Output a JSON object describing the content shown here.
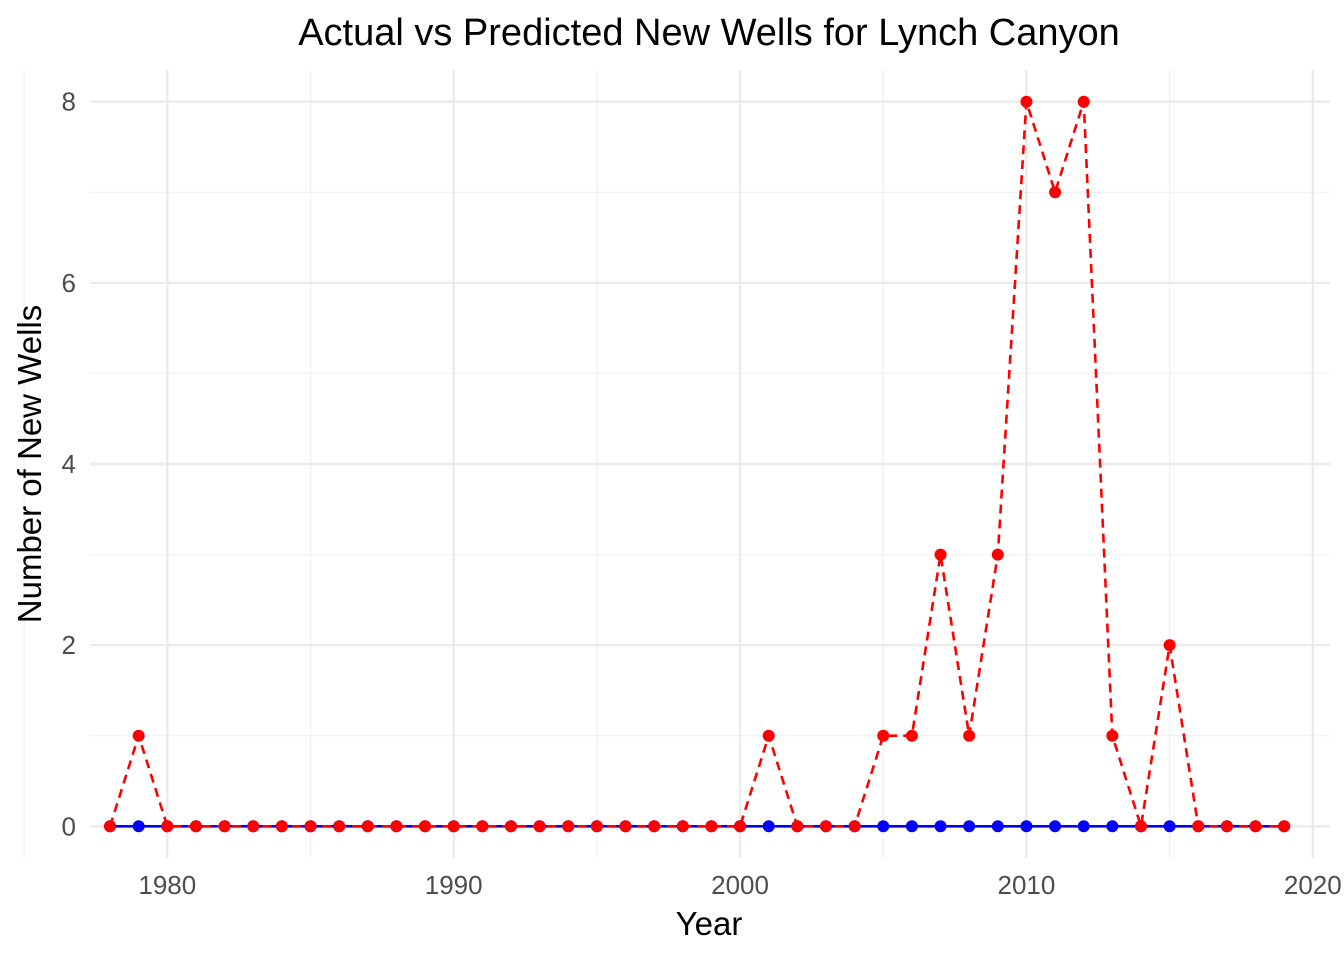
{
  "chart_data": {
    "type": "line",
    "title": "Actual vs Predicted New Wells for Lynch Canyon",
    "xlabel": "Year",
    "ylabel": "Number of New Wells",
    "xlim": [
      1977.3,
      2020.6
    ],
    "ylim": [
      -0.35,
      8.35
    ],
    "x_ticks": [
      1980,
      1990,
      2000,
      2010,
      2020
    ],
    "y_ticks": [
      0,
      2,
      4,
      6,
      8
    ],
    "grid": true,
    "legend": "none",
    "x": [
      1978,
      1979,
      1980,
      1981,
      1982,
      1983,
      1984,
      1985,
      1986,
      1987,
      1988,
      1989,
      1990,
      1991,
      1992,
      1993,
      1994,
      1995,
      1996,
      1997,
      1998,
      1999,
      2000,
      2001,
      2002,
      2003,
      2004,
      2005,
      2006,
      2007,
      2008,
      2009,
      2010,
      2011,
      2012,
      2013,
      2014,
      2015,
      2016,
      2017,
      2018,
      2019
    ],
    "series": [
      {
        "color": "#0000ff",
        "line_style": "solid",
        "values": [
          0,
          0,
          0,
          0,
          0,
          0,
          0,
          0,
          0,
          0,
          0,
          0,
          0,
          0,
          0,
          0,
          0,
          0,
          0,
          0,
          0,
          0,
          0,
          0,
          0,
          0,
          0,
          0,
          0,
          0,
          0,
          0,
          0,
          0,
          0,
          0,
          0,
          0,
          0,
          0,
          0,
          0
        ]
      },
      {
        "color": "#ff0000",
        "line_style": "dashed",
        "values": [
          0,
          1,
          0,
          0,
          0,
          0,
          0,
          0,
          0,
          0,
          0,
          0,
          0,
          0,
          0,
          0,
          0,
          0,
          0,
          0,
          0,
          0,
          0,
          1,
          0,
          0,
          0,
          1,
          1,
          3,
          1,
          3,
          8,
          7,
          8,
          1,
          0,
          2,
          0,
          0,
          0,
          0
        ]
      }
    ]
  }
}
